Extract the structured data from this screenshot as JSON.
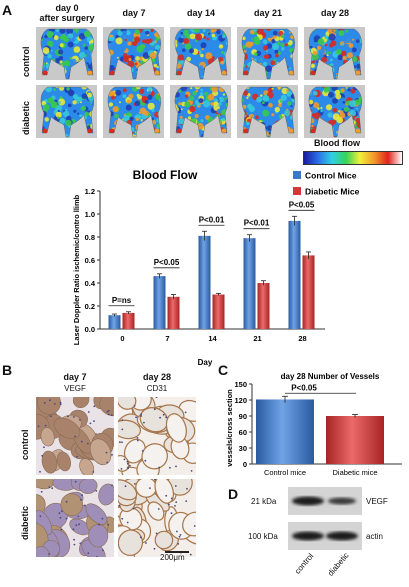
{
  "panelA": {
    "letter": "A",
    "days": [
      "day 0\nafter surgery",
      "day 7",
      "day 14",
      "day 21",
      "day 28"
    ],
    "rows": [
      "control",
      "diabetic"
    ],
    "scale_label": "Blood flow"
  },
  "chart_data": [
    {
      "type": "bar",
      "title": "Blood Flow",
      "xlabel": "Day",
      "ylabel": "Laser Doppler Ratio ischemic/contro llimb",
      "categories": [
        "0",
        "7",
        "14",
        "21",
        "28"
      ],
      "ylim": [
        0,
        1.2
      ],
      "yticks": [
        "0.0",
        "0.2",
        "0.4",
        "0.6",
        "0.8",
        "1.0",
        "1.2"
      ],
      "series": [
        {
          "name": "Control Mice",
          "values": [
            0.12,
            0.46,
            0.81,
            0.79,
            0.94
          ],
          "errors": [
            0.01,
            0.02,
            0.04,
            0.03,
            0.04
          ],
          "color": "#3d78c4"
        },
        {
          "name": "Diabetic Mice",
          "values": [
            0.14,
            0.28,
            0.3,
            0.4,
            0.64
          ],
          "errors": [
            0.01,
            0.02,
            0.01,
            0.02,
            0.03
          ],
          "color": "#d23a3a"
        }
      ],
      "annotations": [
        "P=ns",
        "P<0.05",
        "P<0.01",
        "P<0.01",
        "P<0.05"
      ],
      "legend": "top-right"
    },
    {
      "type": "bar",
      "title": "day 28 Number of Vessels",
      "ylabel": "vessels/cross section",
      "categories": [
        "Control mice",
        "Diabetic mice"
      ],
      "values": [
        121,
        90
      ],
      "errors": [
        6,
        3
      ],
      "colors": [
        "#3d78c4",
        "#d23a3a"
      ],
      "ylim": [
        0,
        150
      ],
      "yticks": [
        "0",
        "30",
        "60",
        "90",
        "120",
        "150"
      ],
      "annotation": "P<0.05"
    }
  ],
  "panelB": {
    "letter": "B",
    "cols": [
      {
        "day": "day 7",
        "stain": "VEGF"
      },
      {
        "day": "day 28",
        "stain": "CD31"
      }
    ],
    "rows": [
      "control",
      "diabetic"
    ],
    "scalebar": "200μm"
  },
  "panelC": {
    "letter": "C"
  },
  "panelD": {
    "letter": "D",
    "bands": [
      {
        "kda": "21 kDa",
        "protein": "VEGF"
      },
      {
        "kda": "100 kDa",
        "protein": "actin"
      }
    ],
    "lanes": [
      "control",
      "diabetic"
    ]
  }
}
